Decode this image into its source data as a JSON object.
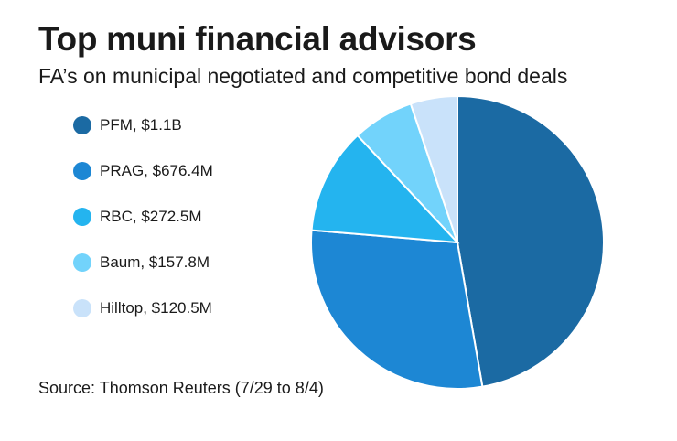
{
  "chart_data": {
    "type": "pie",
    "title": "Top muni financial advisors",
    "subtitle": "FA’s on municipal negotiated and competitive bond deals",
    "source": "Source: Thomson Reuters (7/29 to 8/4)",
    "legend_position": "left",
    "slices": [
      {
        "label": "PFM, $1.1B",
        "value": 1100,
        "color": "#1b6aa3"
      },
      {
        "label": "PRAG, $676.4M",
        "value": 676.4,
        "color": "#1d87d4"
      },
      {
        "label": "RBC, $272.5M",
        "value": 272.5,
        "color": "#24b4ef"
      },
      {
        "label": "Baum, $157.8M",
        "value": 157.8,
        "color": "#72d3fb"
      },
      {
        "label": "Hilltop, $120.5M",
        "value": 120.5,
        "color": "#c9e2fa"
      }
    ]
  }
}
